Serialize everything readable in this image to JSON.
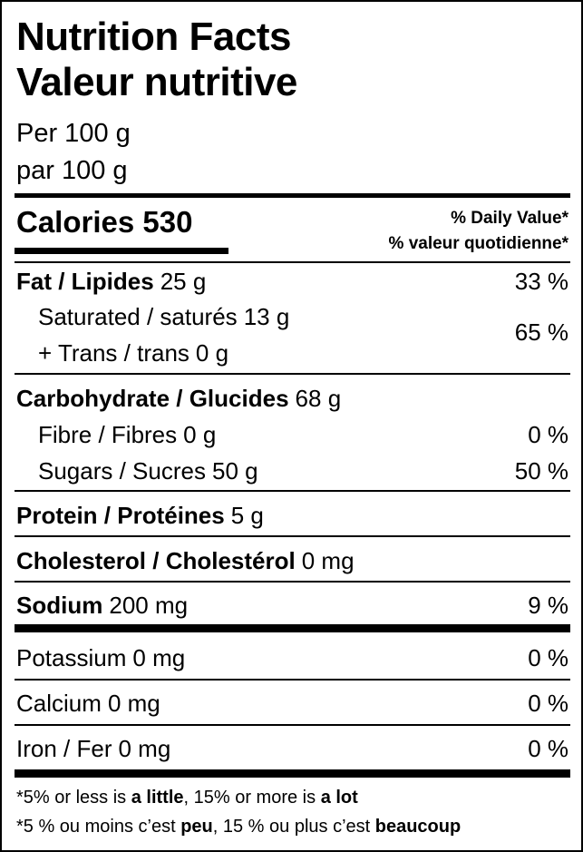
{
  "header": {
    "title": [
      "Nutrition Facts",
      "Valeur nutritive"
    ],
    "serving": [
      "Per 100 g",
      "par 100 g"
    ]
  },
  "calories": {
    "label": "Calories",
    "amount": 530
  },
  "daily_value": [
    "% Daily Value*",
    "% valeur quotidienne*"
  ],
  "nutrients": [
    {
      "name": "Fat / Lipides",
      "amount": "25 g",
      "daily_value": "33 %"
    },
    {
      "name": "Saturated / saturés",
      "amount": "13 g",
      "daily_value": "65 %"
    },
    {
      "name": "+ Trans / trans",
      "amount": "0 g"
    },
    {
      "name": "Carbohydrate / Glucides",
      "amount": "68 g"
    },
    {
      "name": "Fibre / Fibres",
      "amount": "0 g",
      "daily_value": "0 %"
    },
    {
      "name": "Sugars / Sucres",
      "amount": "50 g",
      "daily_value": "50 %"
    },
    {
      "name": "Protein / Protéines",
      "amount": "5 g"
    },
    {
      "name": "Cholesterol / Cholestérol",
      "amount": "0 mg"
    },
    {
      "name": "Sodium",
      "amount": "200 mg",
      "daily_value": "9 %"
    },
    {
      "name": "Potassium",
      "amount": "0 mg",
      "daily_value": "0 %"
    },
    {
      "name": "Calcium",
      "amount": "0 mg",
      "daily_value": "0 %"
    },
    {
      "name": "Iron / Fer",
      "amount": "0 mg",
      "daily_value": "0 %"
    }
  ],
  "footnotes": [
    [
      "*5% or less is ",
      "a little",
      ", 15% or more is ",
      "a lot"
    ],
    [
      "*5 % ou moins c’est ",
      "peu",
      ", 15 % ou plus c’est ",
      "beaucoup"
    ]
  ]
}
